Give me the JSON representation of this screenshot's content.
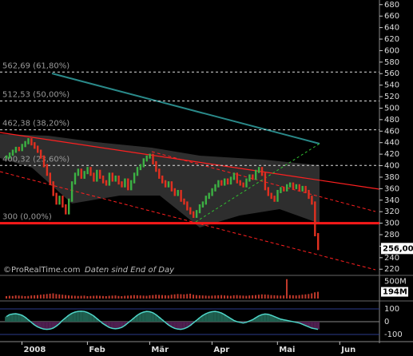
{
  "chart_data": {
    "type": "stock",
    "watermark": "©ProRealTime.com",
    "note": "Daten sind End of Day",
    "xticks": [
      {
        "value": 5,
        "label": "2008"
      },
      {
        "value": 26,
        "label": "Feb"
      },
      {
        "value": 46,
        "label": "Mär"
      },
      {
        "value": 66,
        "label": "Apr"
      },
      {
        "value": 87,
        "label": "Mai"
      },
      {
        "value": 107,
        "label": "Jun"
      }
    ],
    "price": {
      "values": [
        415,
        420,
        425,
        430,
        428,
        435,
        440,
        445,
        438,
        432,
        425,
        415,
        400,
        385,
        370,
        350,
        335,
        345,
        330,
        318,
        340,
        370,
        385,
        392,
        380,
        388,
        395,
        385,
        375,
        390,
        380,
        372,
        368,
        385,
        375,
        380,
        370,
        365,
        375,
        360,
        372,
        385,
        395,
        400,
        410,
        415,
        418,
        405,
        392,
        380,
        372,
        365,
        370,
        358,
        350,
        355,
        340,
        335,
        325,
        318,
        312,
        320,
        330,
        335,
        345,
        350,
        358,
        365,
        372,
        368,
        375,
        370,
        378,
        385,
        372,
        368,
        365,
        375,
        382,
        378,
        390,
        395,
        385,
        360,
        350,
        345,
        340,
        355,
        360,
        358,
        365,
        368,
        362,
        365,
        358,
        362,
        355,
        345,
        335,
        280,
        256
      ],
      "last_label": "256,00",
      "up_color": "#3cb043",
      "down_color": "#e03020",
      "ylim": [
        212,
        688
      ],
      "yticks": [
        220,
        240,
        260,
        280,
        300,
        320,
        340,
        360,
        380,
        400,
        420,
        440,
        460,
        480,
        500,
        520,
        540,
        560,
        580,
        600,
        620,
        640,
        660,
        680
      ],
      "levels": [
        {
          "value": 562.69,
          "label": "562,69 (61,80%)"
        },
        {
          "value": 512.53,
          "label": "512,53 (50,00%)"
        },
        {
          "value": 462.38,
          "label": "462,38 (38,20%)"
        },
        {
          "value": 400.32,
          "label": "400,32 (23,60%)"
        },
        {
          "value": 300,
          "label": "300 (0,00%)"
        }
      ]
    },
    "volume": {
      "values": [
        70,
        80,
        75,
        90,
        85,
        80,
        70,
        75,
        90,
        95,
        100,
        110,
        120,
        130,
        140,
        150,
        130,
        120,
        110,
        100,
        90,
        85,
        80,
        75,
        80,
        85,
        70,
        75,
        80,
        85,
        80,
        75,
        70,
        80,
        85,
        90,
        75,
        70,
        80,
        85,
        90,
        100,
        95,
        90,
        85,
        80,
        95,
        100,
        110,
        105,
        100,
        95,
        90,
        110,
        120,
        130,
        125,
        120,
        130,
        140,
        110,
        100,
        95,
        90,
        85,
        80,
        85,
        90,
        95,
        100,
        90,
        85,
        80,
        95,
        100,
        90,
        85,
        80,
        90,
        95,
        100,
        110,
        120,
        115,
        110,
        100,
        95,
        90,
        85,
        90,
        560,
        100,
        95,
        90,
        100,
        110,
        120,
        130,
        150,
        180,
        194
      ],
      "last_label": "194M",
      "ylim": [
        0,
        600
      ],
      "yticks": [
        {
          "value": 500,
          "label": "500M"
        }
      ]
    },
    "oscillator": {
      "values": [
        40,
        55,
        60,
        62,
        58,
        50,
        35,
        15,
        -5,
        -25,
        -40,
        -50,
        -58,
        -60,
        -58,
        -50,
        -35,
        -15,
        10,
        30,
        50,
        65,
        75,
        80,
        82,
        80,
        72,
        60,
        45,
        25,
        5,
        -15,
        -30,
        -45,
        -52,
        -55,
        -52,
        -45,
        -30,
        -10,
        10,
        30,
        50,
        65,
        75,
        80,
        78,
        70,
        55,
        35,
        15,
        -5,
        -25,
        -40,
        -52,
        -58,
        -60,
        -55,
        -45,
        -30,
        -10,
        10,
        30,
        48,
        62,
        72,
        78,
        80,
        76,
        68,
        55,
        40,
        25,
        10,
        0,
        -5,
        -10,
        -5,
        5,
        15,
        30,
        45,
        55,
        60,
        58,
        50,
        40,
        30,
        20,
        15,
        10,
        5,
        0,
        -5,
        -10,
        -20,
        -30,
        -40,
        -50,
        -55,
        -60
      ],
      "color": "#4fd6c8",
      "ylim": [
        -156,
        156
      ],
      "yticks": [
        100,
        0,
        -100
      ]
    }
  }
}
